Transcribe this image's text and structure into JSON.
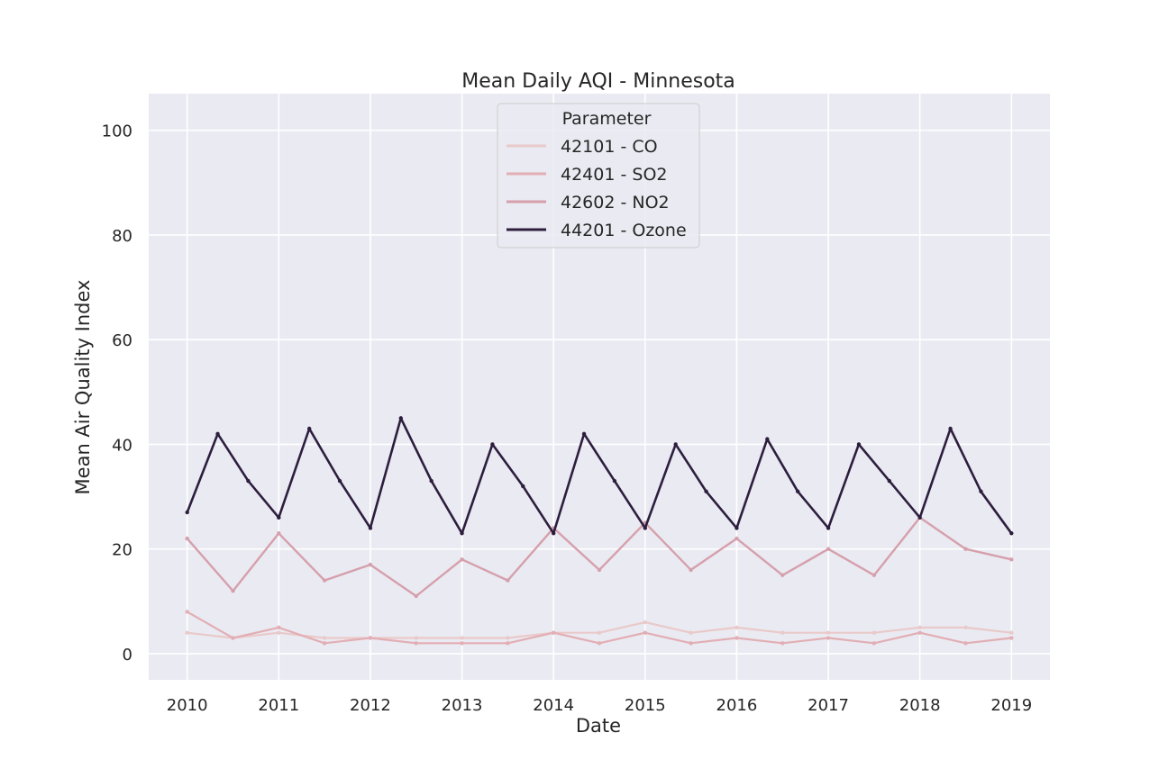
{
  "chart_data": {
    "type": "line",
    "title": "Mean Daily AQI - Minnesota",
    "xlabel": "Date",
    "ylabel": "Mean Air Quality Index",
    "x_range": [
      "2010-01-01",
      "2019-01-01"
    ],
    "ylim": [
      -5,
      107
    ],
    "x_ticks": [
      "2010",
      "2011",
      "2012",
      "2013",
      "2014",
      "2015",
      "2016",
      "2017",
      "2018",
      "2019"
    ],
    "y_ticks": [
      0,
      20,
      40,
      60,
      80,
      100
    ],
    "grid": true,
    "legend": {
      "title": "Parameter",
      "placement": "top-center"
    },
    "series": [
      {
        "name": "42101 - CO",
        "color": "#e9c9c9",
        "x": [
          "2010-01",
          "2010-07",
          "2011-01",
          "2011-07",
          "2012-01",
          "2012-07",
          "2013-01",
          "2013-07",
          "2014-01",
          "2014-07",
          "2015-01",
          "2015-07",
          "2016-01",
          "2016-07",
          "2017-01",
          "2017-07",
          "2018-01",
          "2018-07",
          "2019-01"
        ],
        "values": [
          4,
          3,
          4,
          3,
          3,
          3,
          3,
          3,
          4,
          4,
          6,
          4,
          5,
          4,
          4,
          4,
          5,
          5,
          4
        ]
      },
      {
        "name": "42401 - SO2",
        "color": "#e2aeb4",
        "x": [
          "2010-01",
          "2010-07",
          "2011-01",
          "2011-07",
          "2012-01",
          "2012-07",
          "2013-01",
          "2013-07",
          "2014-01",
          "2014-07",
          "2015-01",
          "2015-07",
          "2016-01",
          "2016-07",
          "2017-01",
          "2017-07",
          "2018-01",
          "2018-07",
          "2019-01"
        ],
        "values": [
          8,
          3,
          5,
          2,
          3,
          2,
          2,
          2,
          4,
          2,
          4,
          2,
          3,
          2,
          3,
          2,
          4,
          2,
          3
        ]
      },
      {
        "name": "42602 - NO2",
        "color": "#d5a0ac",
        "x": [
          "2010-01",
          "2010-07",
          "2011-01",
          "2011-07",
          "2012-01",
          "2012-07",
          "2013-01",
          "2013-07",
          "2014-01",
          "2014-07",
          "2015-01",
          "2015-07",
          "2016-01",
          "2016-07",
          "2017-01",
          "2017-07",
          "2018-01",
          "2018-07",
          "2019-01"
        ],
        "values": [
          22,
          12,
          23,
          14,
          17,
          11,
          18,
          14,
          24,
          16,
          25,
          16,
          22,
          15,
          20,
          15,
          26,
          20,
          18
        ]
      },
      {
        "name": "44201 - Ozone",
        "color": "#2d1e3e",
        "x": [
          "2010-01",
          "2010-05",
          "2010-09",
          "2011-01",
          "2011-05",
          "2011-09",
          "2012-01",
          "2012-05",
          "2012-09",
          "2013-01",
          "2013-05",
          "2013-09",
          "2014-01",
          "2014-05",
          "2014-09",
          "2015-01",
          "2015-05",
          "2015-09",
          "2016-01",
          "2016-05",
          "2016-09",
          "2017-01",
          "2017-05",
          "2017-09",
          "2018-01",
          "2018-05",
          "2018-09",
          "2019-01"
        ],
        "values": [
          27,
          42,
          33,
          26,
          43,
          33,
          24,
          45,
          33,
          23,
          40,
          32,
          23,
          42,
          33,
          24,
          40,
          31,
          24,
          41,
          31,
          24,
          40,
          33,
          26,
          43,
          31,
          23
        ]
      }
    ]
  }
}
